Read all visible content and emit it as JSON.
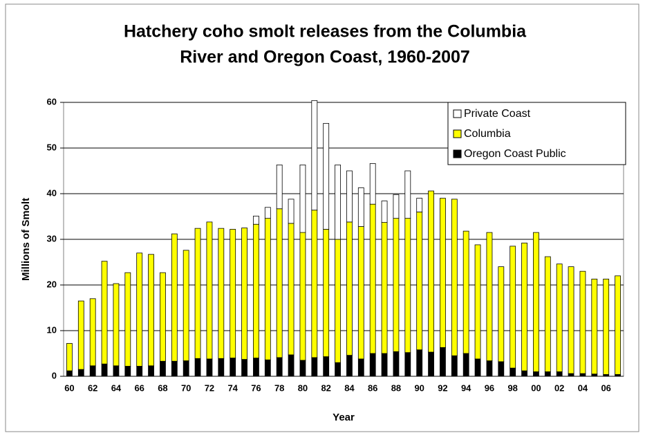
{
  "chart_data": {
    "type": "stacked_bar",
    "title_lines": [
      "Hatchery coho smolt releases from the Columbia",
      "River and Oregon Coast, 1960-2007"
    ],
    "ylabel": "Millions of Smolt",
    "xlabel": "Year",
    "categories": [
      "60",
      null,
      "62",
      null,
      "64",
      null,
      "66",
      null,
      "68",
      null,
      "70",
      null,
      "72",
      null,
      "74",
      null,
      "76",
      null,
      "78",
      null,
      "80",
      null,
      "82",
      null,
      "84",
      null,
      "86",
      null,
      "88",
      null,
      "90",
      null,
      "92",
      null,
      "94",
      null,
      "96",
      null,
      "98",
      null,
      "00",
      null,
      "02",
      null,
      "04",
      null,
      "06",
      null
    ],
    "series": [
      {
        "name": "Oregon Coast Public",
        "color": "#000000",
        "values": [
          1.2,
          1.5,
          2.3,
          2.7,
          2.3,
          2.2,
          2.2,
          2.3,
          3.3,
          3.3,
          3.4,
          3.9,
          3.8,
          3.9,
          4.0,
          3.7,
          4.0,
          3.6,
          4.1,
          4.7,
          3.5,
          4.1,
          4.3,
          3.0,
          4.6,
          3.8,
          5.0,
          5.0,
          5.4,
          5.2,
          5.8,
          5.3,
          6.3,
          4.5,
          5.0,
          3.8,
          3.4,
          3.2,
          1.8,
          1.2,
          1.0,
          1.0,
          1.0,
          0.6,
          0.6,
          0.5,
          0.4,
          0.4
        ]
      },
      {
        "name": "Columbia",
        "color": "#ffff00",
        "values": [
          6.0,
          15.0,
          14.7,
          22.5,
          18.0,
          20.5,
          24.8,
          24.4,
          19.4,
          27.9,
          24.2,
          28.5,
          30.0,
          28.5,
          28.2,
          28.8,
          29.3,
          31.0,
          32.6,
          28.8,
          28.0,
          32.3,
          27.9,
          27.0,
          29.2,
          29.0,
          32.7,
          28.7,
          29.2,
          29.4,
          30.2,
          35.3,
          32.7,
          34.3,
          26.8,
          25.0,
          28.1,
          20.8,
          26.7,
          28.0,
          30.5,
          25.2,
          23.6,
          23.4,
          22.4,
          20.8,
          20.9,
          21.6
        ]
      },
      {
        "name": "Private Coast",
        "color": "#ffffff",
        "values": [
          0,
          0,
          0,
          0,
          0,
          0,
          0,
          0,
          0,
          0,
          0,
          0,
          0,
          0,
          0,
          0,
          1.8,
          2.4,
          9.6,
          5.3,
          14.8,
          24.0,
          23.2,
          16.3,
          11.2,
          8.5,
          8.9,
          4.7,
          5.2,
          10.4,
          3.0,
          0,
          0,
          0,
          0,
          0,
          0,
          0,
          0,
          0,
          0,
          0,
          0,
          0,
          0,
          0,
          0,
          0
        ]
      }
    ],
    "ylim": [
      0,
      60
    ],
    "yticks": [
      0,
      10,
      20,
      30,
      40,
      50,
      60
    ],
    "grid": true,
    "legend": "upper right"
  }
}
